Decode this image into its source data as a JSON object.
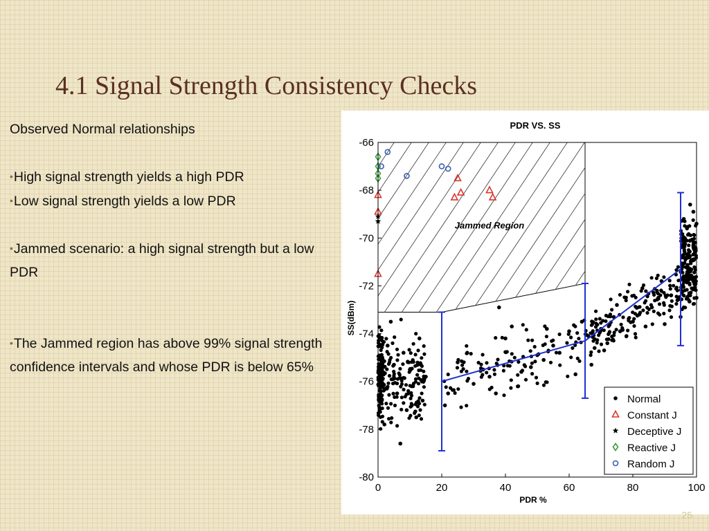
{
  "slide": {
    "title": "4.1 Signal Strength Consistency Checks",
    "intro": "Observed Normal relationships",
    "bullets": [
      "High signal strength yields a high PDR",
      "Low signal strength yields a low PDR",
      "Jammed scenario: a high signal strength but a low PDR",
      "The Jammed region has above 99% signal strength confidence intervals and whose PDR is below 65%"
    ],
    "page_number": "25",
    "accent_color": "#5a2f23"
  },
  "chart_data": {
    "type": "scatter",
    "title": "PDR VS. SS",
    "xlabel": "PDR %",
    "ylabel": "SS(dBm)",
    "xlim": [
      0,
      100
    ],
    "ylim": [
      -80,
      -66
    ],
    "xticks": [
      0,
      20,
      40,
      60,
      80,
      100
    ],
    "yticks": [
      -66,
      -68,
      -70,
      -72,
      -74,
      -76,
      -78,
      -80
    ],
    "grid": false,
    "legend_position": "lower-right",
    "annotations": [
      {
        "text": "Jammed Region",
        "x": 35,
        "y": -69.6
      }
    ],
    "jammed_region": {
      "boundary": [
        [
          0,
          -66
        ],
        [
          65,
          -66
        ],
        [
          65,
          -71.9
        ],
        [
          20,
          -73.1
        ],
        [
          0,
          -73.1
        ]
      ]
    },
    "normal_cluster_summary": [
      {
        "x_range": [
          0,
          15
        ],
        "y_range": [
          -78.6,
          -73.5
        ]
      },
      {
        "x_range": [
          20,
          65
        ],
        "y_range": [
          -77,
          -72.9
        ]
      },
      {
        "x_range": [
          65,
          95
        ],
        "y_range": [
          -75.3,
          -71.8
        ]
      },
      {
        "x_range": [
          95,
          100
        ],
        "y_range": [
          -73.5,
          -68.6
        ]
      }
    ],
    "series": [
      {
        "name": "Normal",
        "marker": "dot",
        "color": "#000000",
        "points": [
          [
            3,
            -74.5
          ],
          [
            5,
            -75.3
          ],
          [
            8,
            -74.8
          ],
          [
            11,
            -76.2
          ],
          [
            13,
            -74.2
          ],
          [
            15,
            -75.8
          ],
          [
            2,
            -77.8
          ],
          [
            6,
            -76.5
          ],
          [
            9,
            -77.2
          ],
          [
            12,
            -77.5
          ],
          [
            14,
            -76.8
          ],
          [
            4,
            -73.5
          ],
          [
            1,
            -76
          ],
          [
            7,
            -78.6
          ],
          [
            10,
            -75.5
          ],
          [
            22,
            -76.5
          ],
          [
            25,
            -75.2
          ],
          [
            28,
            -74.8
          ],
          [
            30,
            -76.1
          ],
          [
            33,
            -75.5
          ],
          [
            35,
            -75.8
          ],
          [
            37,
            -76.5
          ],
          [
            40,
            -74.2
          ],
          [
            42,
            -73.7
          ],
          [
            45,
            -75.6
          ],
          [
            48,
            -75.4
          ],
          [
            50,
            -74.9
          ],
          [
            52,
            -75.1
          ],
          [
            55,
            -74.5
          ],
          [
            57,
            -74.8
          ],
          [
            60,
            -73.9
          ],
          [
            62,
            -75.7
          ],
          [
            64,
            -73.5
          ],
          [
            38,
            -72.9
          ],
          [
            44,
            -76.2
          ],
          [
            21,
            -77
          ],
          [
            53,
            -73.8
          ],
          [
            66,
            -74.1
          ],
          [
            68,
            -74.6
          ],
          [
            70,
            -73.8
          ],
          [
            72,
            -74.4
          ],
          [
            74,
            -73.3
          ],
          [
            76,
            -73.9
          ],
          [
            78,
            -74.1
          ],
          [
            80,
            -73.5
          ],
          [
            82,
            -73.2
          ],
          [
            84,
            -73.7
          ],
          [
            86,
            -72.9
          ],
          [
            88,
            -72.5
          ],
          [
            90,
            -73.6
          ],
          [
            92,
            -72.4
          ],
          [
            94,
            -72.6
          ],
          [
            67,
            -75.3
          ],
          [
            71,
            -74.7
          ],
          [
            75,
            -72.8
          ],
          [
            83,
            -72.1
          ],
          [
            89,
            -71.8
          ],
          [
            96,
            -72.9
          ],
          [
            97,
            -71.5
          ],
          [
            98,
            -72.4
          ],
          [
            99,
            -70.3
          ],
          [
            96,
            -70.8
          ],
          [
            97,
            -69.6
          ],
          [
            98,
            -70.1
          ],
          [
            99,
            -68.9
          ],
          [
            100,
            -69.4
          ],
          [
            95,
            -73.3
          ],
          [
            99,
            -71.7
          ],
          [
            98,
            -68.6
          ],
          [
            96,
            -69.2
          ],
          [
            100,
            -72.5
          ]
        ]
      },
      {
        "name": "Constant J",
        "marker": "triangle",
        "color": "#d9352b",
        "points": [
          [
            0,
            -68.2
          ],
          [
            0,
            -68.9
          ],
          [
            0,
            -71.5
          ],
          [
            24,
            -68.3
          ],
          [
            25,
            -67.5
          ],
          [
            26,
            -68.1
          ],
          [
            35,
            -68
          ],
          [
            36,
            -68.3
          ]
        ]
      },
      {
        "name": "Deceptive J",
        "marker": "star",
        "color": "#000000",
        "points": [
          [
            0,
            -69.1
          ],
          [
            0,
            -69.3
          ]
        ]
      },
      {
        "name": "Reactive J",
        "marker": "diamond",
        "color": "#3a9a3a",
        "points": [
          [
            0,
            -66.6
          ],
          [
            0,
            -67
          ],
          [
            0,
            -67.3
          ],
          [
            0,
            -67.5
          ]
        ]
      },
      {
        "name": "Random J",
        "marker": "circle",
        "color": "#3a5fb0",
        "points": [
          [
            1,
            -67
          ],
          [
            3,
            -66.4
          ],
          [
            9,
            -67.4
          ],
          [
            20,
            -67
          ],
          [
            22,
            -67.1
          ]
        ]
      }
    ],
    "confidence_intervals": [
      {
        "x": 20,
        "low": -78.9,
        "high": -73.1
      },
      {
        "x": 65,
        "low": -76.7,
        "high": -71.9
      },
      {
        "x": 95,
        "low": -74.5,
        "high": -68.1
      }
    ],
    "mean_line": [
      [
        20,
        -76
      ],
      [
        65,
        -74.3
      ],
      [
        95,
        -71.3
      ]
    ]
  }
}
